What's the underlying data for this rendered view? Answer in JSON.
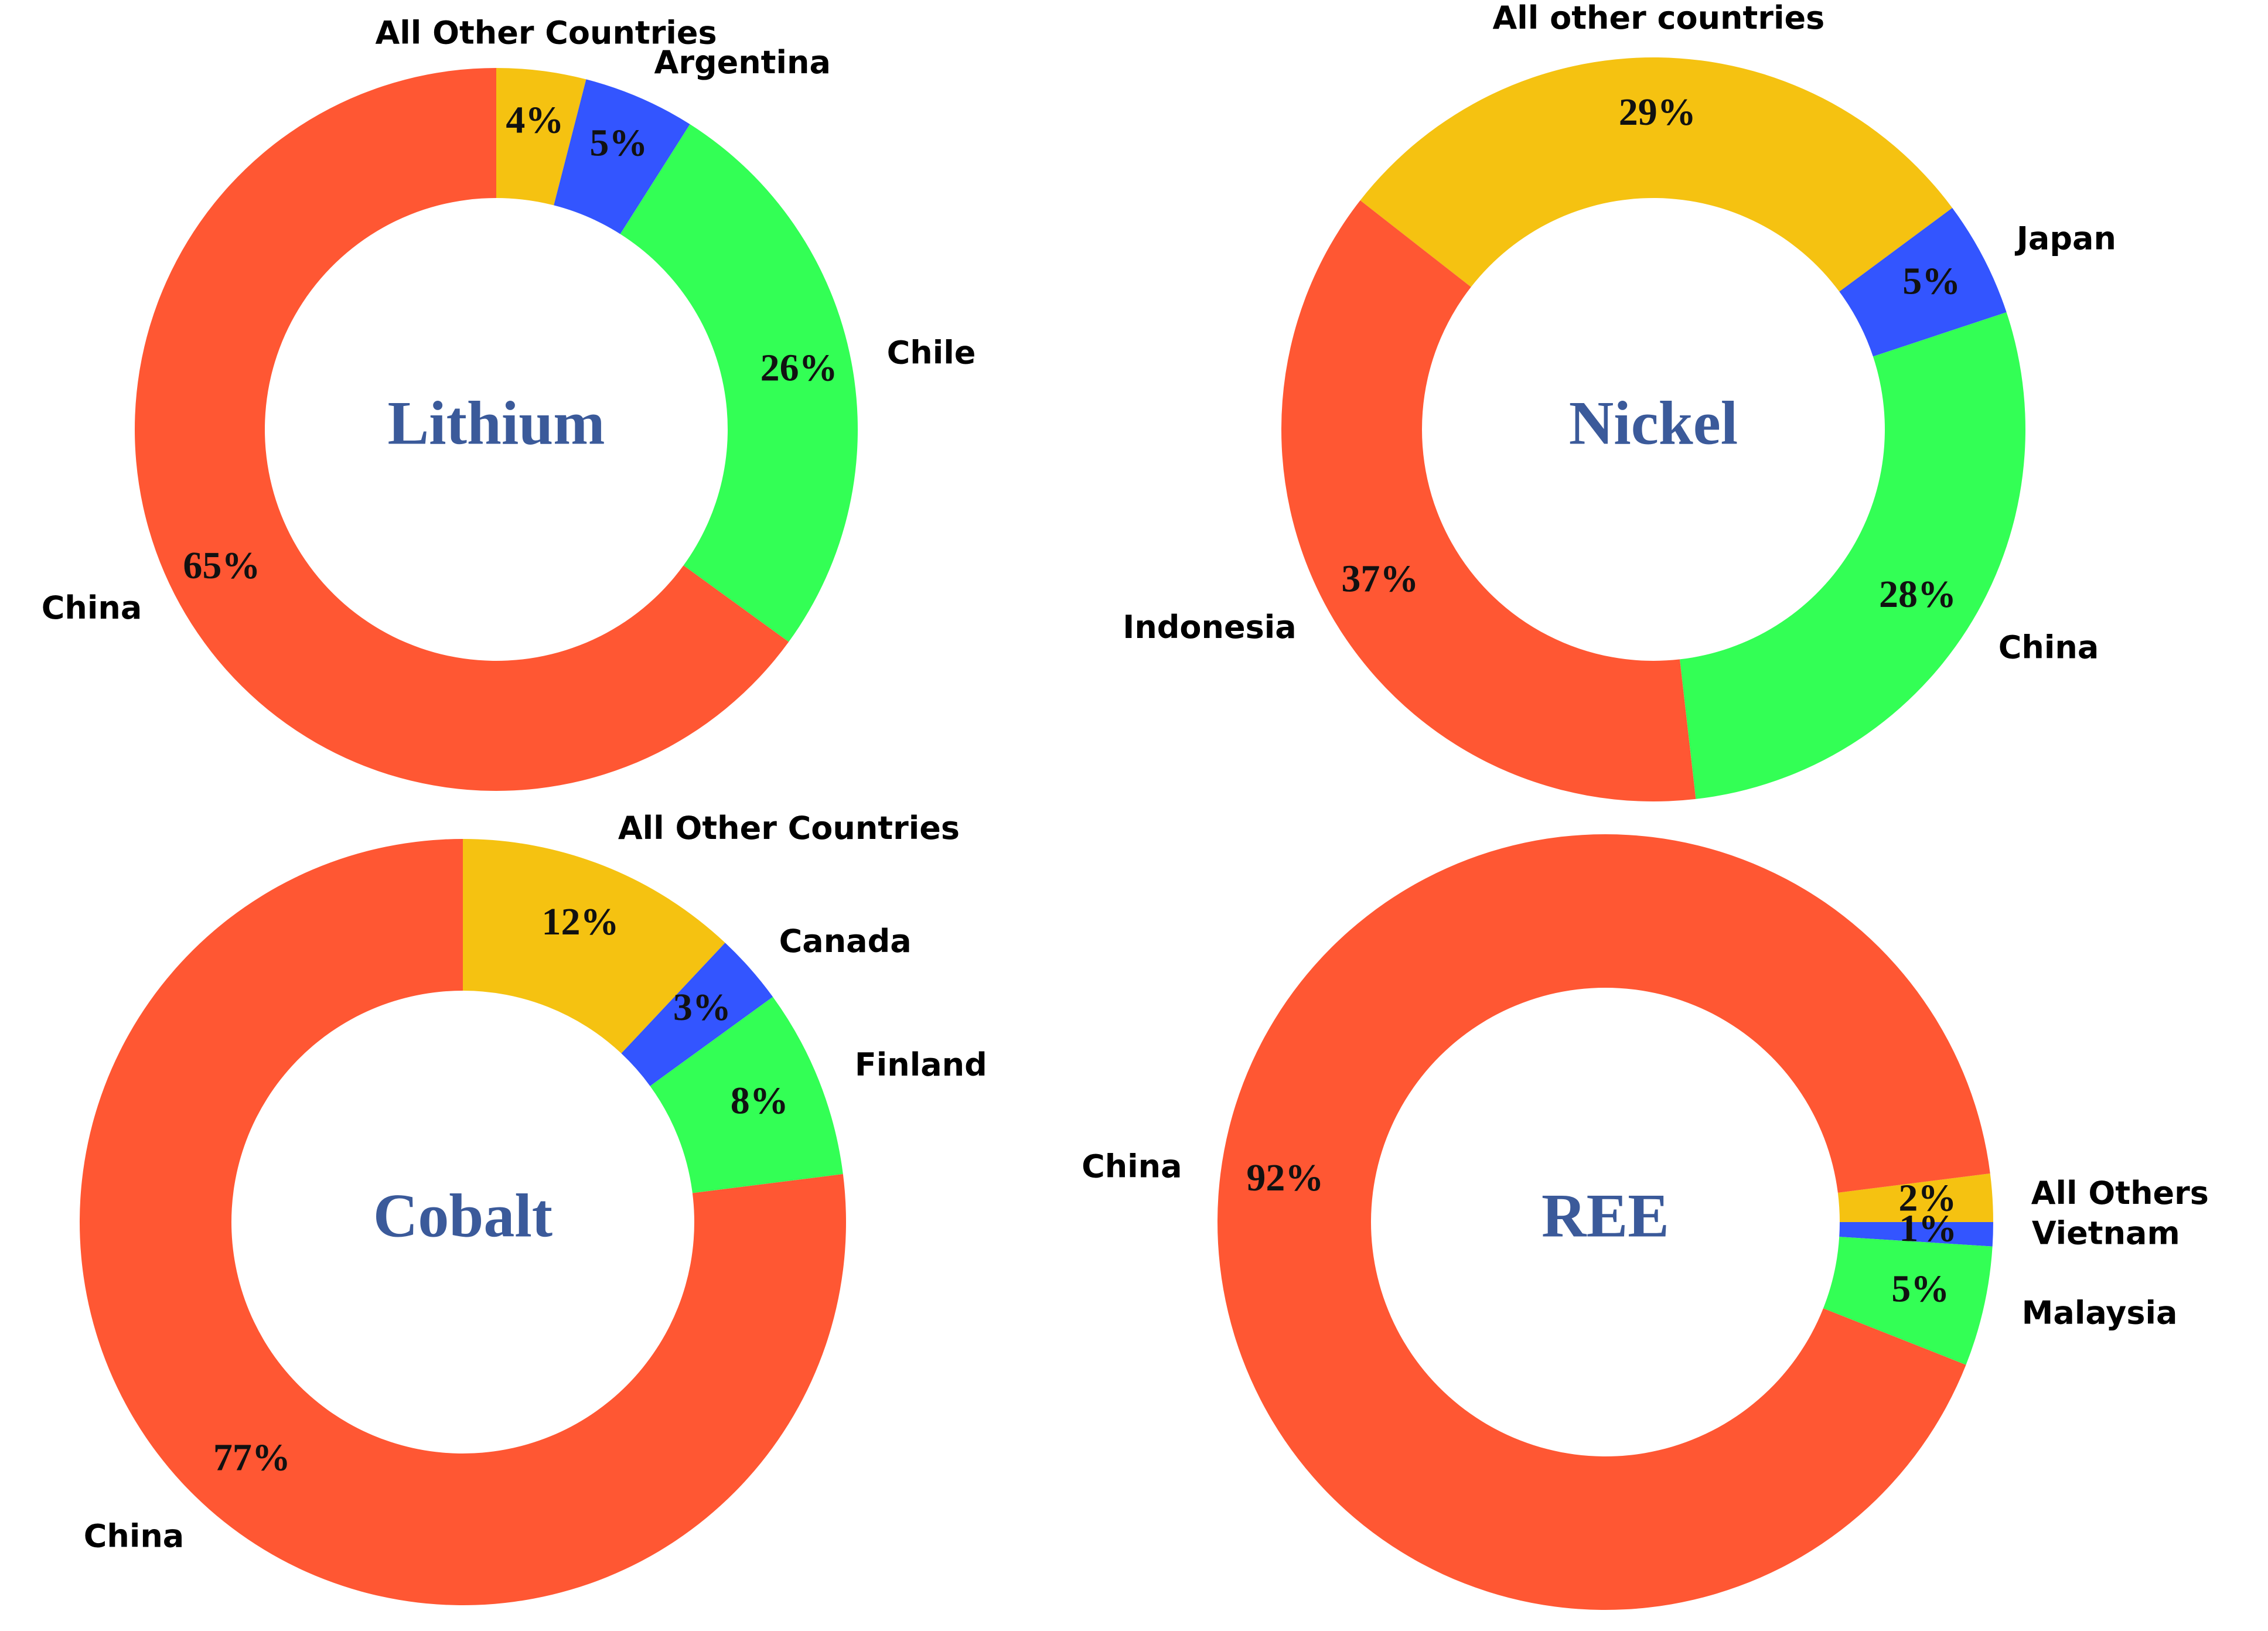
{
  "chart_data": [
    {
      "type": "pie",
      "title": "Lithium",
      "categories": [
        "All Other Countries",
        "Argentina",
        "Chile",
        "China"
      ],
      "values": [
        4,
        5,
        26,
        65
      ],
      "value_labels": [
        "4%",
        "5%",
        "26%",
        "65%"
      ],
      "colors": [
        "#f5c211",
        "#3355ff",
        "#33ff55",
        "#ff5733"
      ]
    },
    {
      "type": "pie",
      "title": "Nickel",
      "categories": [
        "All other countries",
        "Japan",
        "China",
        "Indonesia"
      ],
      "values": [
        29,
        5,
        28,
        37
      ],
      "value_labels": [
        "29%",
        "5%",
        "28%",
        "37%"
      ],
      "colors": [
        "#f5c211",
        "#3355ff",
        "#33ff55",
        "#ff5733"
      ]
    },
    {
      "type": "pie",
      "title": "Cobalt",
      "categories": [
        "All Other Countries",
        "Canada",
        "Finland",
        "China"
      ],
      "values": [
        12,
        3,
        8,
        77
      ],
      "value_labels": [
        "12%",
        "3%",
        "8%",
        "77%"
      ],
      "colors": [
        "#f5c211",
        "#3355ff",
        "#33ff55",
        "#ff5733"
      ]
    },
    {
      "type": "pie",
      "title": "REE",
      "categories": [
        "All Others",
        "Vietnam",
        "Malaysia",
        "China"
      ],
      "values": [
        2,
        1,
        5,
        92
      ],
      "value_labels": [
        "2%",
        "1%",
        "5%",
        "92%"
      ],
      "colors": [
        "#f5c211",
        "#3355ff",
        "#33ff55",
        "#ff5733"
      ]
    }
  ]
}
